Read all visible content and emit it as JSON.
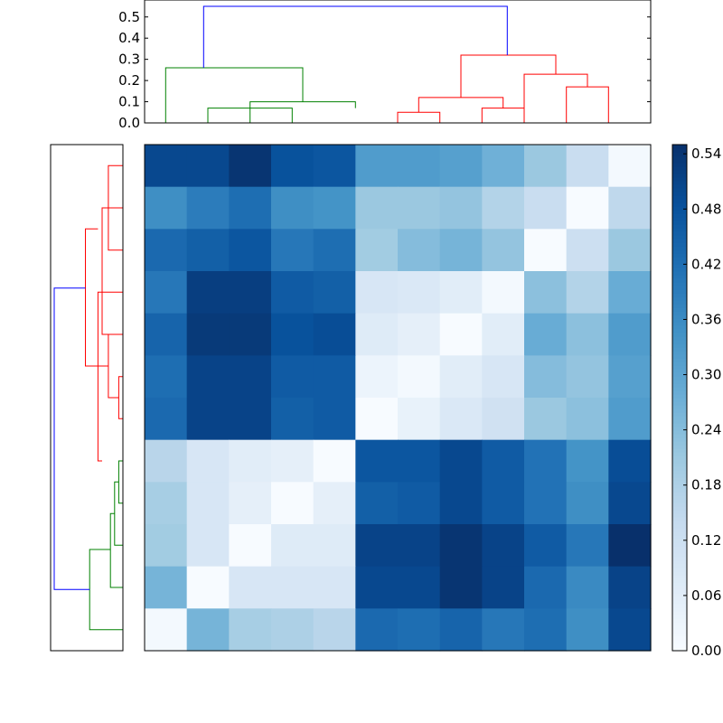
{
  "chart_data": [
    {
      "type": "dendrogram",
      "orientation": "top",
      "ylim": [
        0,
        0.58
      ],
      "yticks": [
        "0.0",
        "0.1",
        "0.2",
        "0.3",
        "0.4",
        "0.5"
      ],
      "leaves": 12,
      "links": [
        {
          "x": [
            1.5,
            1.5,
            3.5,
            3.5
          ],
          "y": [
            0.0,
            0.07,
            0.07,
            0.0
          ],
          "color": "#008000"
        },
        {
          "x": [
            2.5,
            2.5,
            5.0,
            5.0
          ],
          "y": [
            0.0,
            0.1,
            0.1,
            0.07
          ],
          "color": "#008000"
        },
        {
          "x": [
            0.5,
            0.5,
            3.75,
            3.75
          ],
          "y": [
            0.0,
            0.26,
            0.26,
            0.1
          ],
          "color": "#008000"
        },
        {
          "x": [
            6.0,
            6.0,
            7.0,
            7.0
          ],
          "y": [
            0.0,
            0.05,
            0.05,
            0.0
          ],
          "color": "#ff0000"
        },
        {
          "x": [
            8.0,
            8.0,
            9.0,
            9.0
          ],
          "y": [
            0.0,
            0.07,
            0.07,
            0.0
          ],
          "color": "#ff0000"
        },
        {
          "x": [
            6.5,
            6.5,
            8.5,
            8.5
          ],
          "y": [
            0.05,
            0.12,
            0.12,
            0.07
          ],
          "color": "#ff0000"
        },
        {
          "x": [
            10.0,
            10.0,
            11.0,
            11.0
          ],
          "y": [
            0.0,
            0.17,
            0.17,
            0.0
          ],
          "color": "#ff0000"
        },
        {
          "x": [
            9.0,
            9.0,
            10.5,
            10.5
          ],
          "y": [
            0.0,
            0.23,
            0.23,
            0.17
          ],
          "color": "#ff0000"
        },
        {
          "x": [
            7.5,
            7.5,
            9.75,
            9.75
          ],
          "y": [
            0.12,
            0.32,
            0.32,
            0.23
          ],
          "color": "#ff0000"
        },
        {
          "x": [
            1.4,
            1.4,
            8.6,
            8.6
          ],
          "y": [
            0.26,
            0.55,
            0.55,
            0.32
          ],
          "color": "#0000ff"
        }
      ]
    },
    {
      "type": "dendrogram",
      "orientation": "left",
      "leaves": 12,
      "links": [
        {
          "y": [
            0.5,
            0.5,
            2.5,
            2.5
          ],
          "x": [
            0.0,
            0.07,
            0.07,
            0.0
          ],
          "color": "#ff0000"
        },
        {
          "y": [
            1.5,
            1.5,
            4.5,
            4.5
          ],
          "x": [
            0.0,
            0.1,
            0.1,
            0.07
          ],
          "color": "#ff0000"
        },
        {
          "y": [
            3.5,
            3.5,
            7.5,
            7.5
          ],
          "x": [
            0.0,
            0.12,
            0.12,
            0.1
          ],
          "color": "#ff0000"
        },
        {
          "y": [
            5.5,
            5.5,
            6.5,
            6.5
          ],
          "x": [
            0.0,
            0.02,
            0.02,
            0.0
          ],
          "color": "#ff0000"
        },
        {
          "y": [
            4.5,
            4.5,
            6.0,
            6.0
          ],
          "x": [
            0.0,
            0.07,
            0.07,
            0.02
          ],
          "color": "#ff0000"
        },
        {
          "y": [
            2.0,
            2.0,
            5.25,
            5.25
          ],
          "x": [
            0.12,
            0.18,
            0.18,
            0.07
          ],
          "color": "#ff0000"
        },
        {
          "y": [
            7.5,
            7.5,
            8.5,
            8.5
          ],
          "x": [
            0.0,
            0.02,
            0.02,
            0.0
          ],
          "color": "#008000"
        },
        {
          "y": [
            8.0,
            8.0,
            9.5,
            9.5
          ],
          "x": [
            0.02,
            0.04,
            0.04,
            0.0
          ],
          "color": "#008000"
        },
        {
          "y": [
            8.75,
            8.75,
            10.5,
            10.5
          ],
          "x": [
            0.04,
            0.06,
            0.06,
            0.0
          ],
          "color": "#008000"
        },
        {
          "y": [
            9.6,
            9.6,
            11.5,
            11.5
          ],
          "x": [
            0.06,
            0.16,
            0.16,
            0.0
          ],
          "color": "#008000"
        },
        {
          "y": [
            3.4,
            3.4,
            10.55,
            10.55
          ],
          "x": [
            0.18,
            0.33,
            0.33,
            0.16
          ],
          "color": "#0000ff"
        }
      ]
    },
    {
      "type": "heatmap",
      "rows": 12,
      "cols": 12,
      "vmin": 0.0,
      "vmax": 0.55,
      "colormap": "Blues",
      "values": [
        [
          0.5,
          0.5,
          0.54,
          0.48,
          0.47,
          0.32,
          0.32,
          0.31,
          0.27,
          0.21,
          0.13,
          0.01
        ],
        [
          0.35,
          0.39,
          0.42,
          0.35,
          0.34,
          0.21,
          0.21,
          0.22,
          0.17,
          0.13,
          0.0,
          0.15
        ],
        [
          0.43,
          0.45,
          0.47,
          0.4,
          0.42,
          0.2,
          0.24,
          0.26,
          0.22,
          0.0,
          0.12,
          0.21
        ],
        [
          0.4,
          0.52,
          0.52,
          0.46,
          0.45,
          0.09,
          0.08,
          0.06,
          0.01,
          0.23,
          0.17,
          0.28
        ],
        [
          0.44,
          0.53,
          0.53,
          0.48,
          0.49,
          0.07,
          0.05,
          0.0,
          0.06,
          0.28,
          0.23,
          0.32
        ],
        [
          0.42,
          0.51,
          0.51,
          0.46,
          0.46,
          0.03,
          0.01,
          0.06,
          0.09,
          0.24,
          0.22,
          0.31
        ],
        [
          0.43,
          0.51,
          0.51,
          0.45,
          0.46,
          0.0,
          0.04,
          0.08,
          0.11,
          0.21,
          0.23,
          0.32
        ],
        [
          0.16,
          0.09,
          0.06,
          0.05,
          0.0,
          0.47,
          0.47,
          0.5,
          0.46,
          0.41,
          0.34,
          0.49
        ],
        [
          0.19,
          0.09,
          0.05,
          0.0,
          0.05,
          0.45,
          0.46,
          0.5,
          0.46,
          0.41,
          0.35,
          0.5
        ],
        [
          0.2,
          0.09,
          0.0,
          0.07,
          0.07,
          0.51,
          0.51,
          0.54,
          0.51,
          0.46,
          0.4,
          0.55
        ],
        [
          0.26,
          0.0,
          0.09,
          0.09,
          0.09,
          0.5,
          0.5,
          0.54,
          0.51,
          0.43,
          0.36,
          0.51
        ],
        [
          0.01,
          0.26,
          0.19,
          0.18,
          0.16,
          0.43,
          0.42,
          0.44,
          0.4,
          0.42,
          0.35,
          0.5
        ]
      ]
    },
    {
      "type": "colorbar",
      "vmin": 0.0,
      "vmax": 0.55,
      "ticks": [
        0.0,
        0.06,
        0.12,
        0.18,
        0.24,
        0.3,
        0.36,
        0.42,
        0.48,
        0.54
      ],
      "tick_labels": [
        "0.00",
        "0.06",
        "0.12",
        "0.18",
        "0.24",
        "0.30",
        "0.36",
        "0.42",
        "0.48",
        "0.54"
      ]
    }
  ]
}
